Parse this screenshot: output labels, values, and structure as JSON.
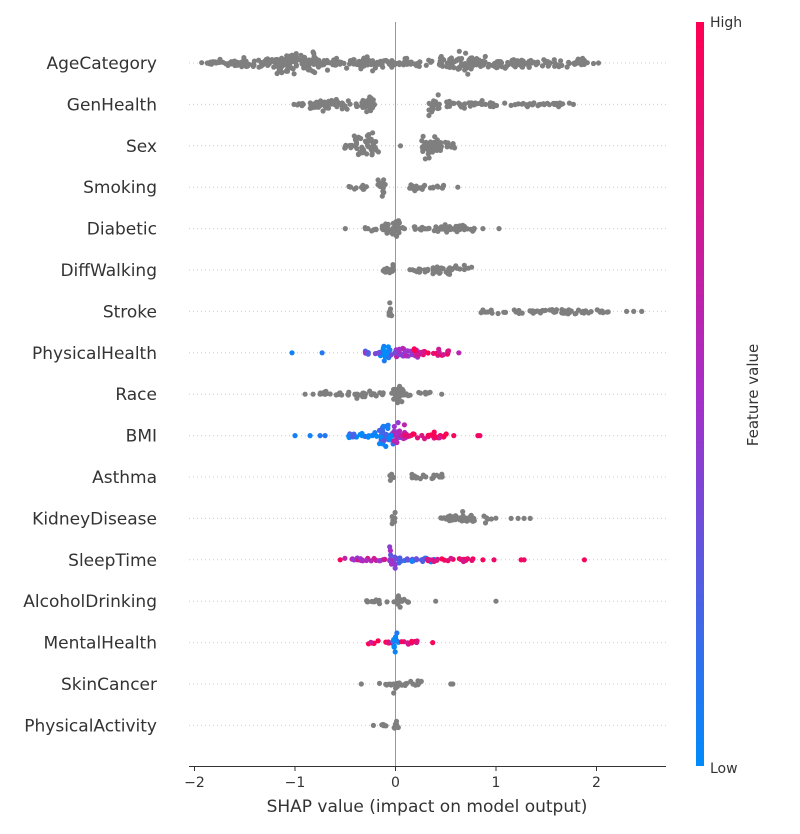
{
  "chart_data": {
    "type": "scatter",
    "subtype": "shap-beeswarm",
    "title": "",
    "xlabel": "SHAP value (impact on model output)",
    "xlim": [
      -2.05,
      2.7
    ],
    "xticks": [
      {
        "value": -2,
        "label": "−2"
      },
      {
        "value": -1,
        "label": "−1"
      },
      {
        "value": 0,
        "label": "0"
      },
      {
        "value": 1,
        "label": "1"
      },
      {
        "value": 2,
        "label": "2"
      }
    ],
    "grid": false,
    "zero_line": true,
    "colors": {
      "no_value": "#7f7f7f",
      "low": "#008bfb",
      "high": "#ff0051",
      "mid": "#a82ec9",
      "axis": "#333333",
      "row_guide": "#cccccc",
      "zero_line": "#999999"
    },
    "colorbar": {
      "title": "Feature value",
      "high_label": "High",
      "low_label": "Low"
    },
    "features": [
      {
        "name": "AgeCategory",
        "clusters": [
          {
            "c": -1.86,
            "w": 0.02,
            "n": 1,
            "a": 0.4
          },
          {
            "c": -1.75,
            "w": 0.18,
            "n": 1,
            "a": 2
          },
          {
            "c": -1.4,
            "w": 0.35,
            "n": 1,
            "a": 5
          },
          {
            "c": -0.98,
            "w": 0.2,
            "n": 1,
            "a": 11
          },
          {
            "c": -0.5,
            "w": 0.32,
            "n": 1,
            "a": 6
          },
          {
            "c": 0.1,
            "w": 0.3,
            "n": 1,
            "a": 4
          },
          {
            "c": 0.6,
            "w": 0.17,
            "n": 1,
            "a": 9
          },
          {
            "c": 1.0,
            "w": 0.3,
            "n": 1,
            "a": 6
          },
          {
            "c": 1.55,
            "w": 0.35,
            "n": 1,
            "a": 4
          },
          {
            "c": 1.87,
            "w": 0.1,
            "n": 1,
            "a": 2
          }
        ],
        "outliers": [
          2.02
        ]
      },
      {
        "name": "GenHealth",
        "clusters": [
          {
            "c": -0.95,
            "w": 0.05,
            "n": 1,
            "a": 1.5
          },
          {
            "c": -0.65,
            "w": 0.2,
            "n": 1,
            "a": 7
          },
          {
            "c": -0.3,
            "w": 0.12,
            "n": 1,
            "a": 3
          },
          {
            "c": -0.28,
            "w": 0.06,
            "n": 1,
            "a": 11
          },
          {
            "c": 0.38,
            "w": 0.06,
            "n": 1,
            "a": 8
          },
          {
            "c": 0.75,
            "w": 0.25,
            "n": 1,
            "a": 3.5
          },
          {
            "c": 1.3,
            "w": 0.45,
            "n": 1,
            "a": 2
          }
        ],
        "outliers": [
          -1.01,
          1.77
        ]
      },
      {
        "name": "Sex",
        "clusters": [
          {
            "c": -0.45,
            "w": 0.06,
            "n": 1,
            "a": 3
          },
          {
            "c": -0.29,
            "w": 0.12,
            "n": 1,
            "a": 12
          },
          {
            "c": 0.36,
            "w": 0.1,
            "n": 1,
            "a": 12
          },
          {
            "c": 0.52,
            "w": 0.07,
            "n": 1,
            "a": 4
          }
        ],
        "outliers": [
          0.05
        ]
      },
      {
        "name": "Smoking",
        "clusters": [
          {
            "c": -0.38,
            "w": 0.1,
            "n": 1,
            "a": 2
          },
          {
            "c": -0.14,
            "w": 0.04,
            "n": 1,
            "a": 9
          },
          {
            "c": 0.22,
            "w": 0.08,
            "n": 1,
            "a": 5
          },
          {
            "c": 0.3,
            "w": 0.18,
            "n": 1,
            "a": 2
          }
        ],
        "outliers": [
          -0.45,
          0.62
        ]
      },
      {
        "name": "Diabetic",
        "clusters": [
          {
            "c": -0.25,
            "w": 0.06,
            "n": 1,
            "a": 2
          },
          {
            "c": -0.05,
            "w": 0.1,
            "n": 1,
            "a": 10
          },
          {
            "c": 0.35,
            "w": 0.35,
            "n": 1,
            "a": 3
          },
          {
            "c": 0.6,
            "w": 0.2,
            "n": 1,
            "a": 4
          }
        ],
        "outliers": [
          -0.5,
          -0.3,
          0.87,
          1.03
        ]
      },
      {
        "name": "DiffWalking",
        "clusters": [
          {
            "c": -0.08,
            "w": 0.06,
            "n": 1,
            "a": 6
          },
          {
            "c": 0.45,
            "w": 0.32,
            "n": 1,
            "a": 4
          }
        ],
        "outliers": []
      },
      {
        "name": "Stroke",
        "clusters": [
          {
            "c": -0.05,
            "w": 0.02,
            "n": 1,
            "a": 10
          },
          {
            "c": 1.4,
            "w": 0.55,
            "n": 1,
            "a": 3
          },
          {
            "c": 2.1,
            "w": 0.1,
            "n": 1,
            "a": 2
          }
        ],
        "outliers": [
          2.3,
          2.37,
          2.45
        ]
      },
      {
        "name": "PhysicalHealth",
        "clusters": [
          {
            "c": -0.1,
            "w": 0.05,
            "n": 0.05,
            "a": 8
          },
          {
            "c": -0.25,
            "w": 0.1,
            "n": 0.3,
            "a": 2
          },
          {
            "c": 0.1,
            "w": 0.15,
            "n": 0.45,
            "a": 5
          },
          {
            "c": 0.35,
            "w": 0.18,
            "n": 0.85,
            "a": 4
          }
        ],
        "outliers": [
          -1.03,
          -0.73,
          0.63
        ],
        "outlier_n": [
          0.05,
          0.1,
          0.6
        ]
      },
      {
        "name": "Race",
        "clusters": [
          {
            "c": -0.6,
            "w": 0.2,
            "n": 1,
            "a": 2
          },
          {
            "c": -0.25,
            "w": 0.15,
            "n": 1,
            "a": 4
          },
          {
            "c": 0.02,
            "w": 0.06,
            "n": 1,
            "a": 12
          },
          {
            "c": 0.2,
            "w": 0.15,
            "n": 1,
            "a": 3
          }
        ],
        "outliers": [
          -0.9,
          -0.82,
          -0.75,
          0.46
        ]
      },
      {
        "name": "BMI",
        "clusters": [
          {
            "c": -0.28,
            "w": 0.2,
            "n": 0.08,
            "a": 3
          },
          {
            "c": -0.08,
            "w": 0.08,
            "n": 0.15,
            "a": 11
          },
          {
            "c": 0.05,
            "w": 0.07,
            "n": 0.55,
            "a": 10
          },
          {
            "c": 0.3,
            "w": 0.22,
            "n": 0.9,
            "a": 3
          }
        ],
        "outliers": [
          -1.0,
          -0.85,
          -0.75,
          -0.7,
          0.58,
          0.82,
          0.84
        ],
        "outlier_n": [
          0.05,
          0.05,
          0.1,
          0.1,
          0.95,
          0.95,
          0.9
        ]
      },
      {
        "name": "Asthma",
        "clusters": [
          {
            "c": -0.04,
            "w": 0.02,
            "n": 1,
            "a": 7
          },
          {
            "c": 0.3,
            "w": 0.18,
            "n": 1,
            "a": 3
          }
        ],
        "outliers": []
      },
      {
        "name": "KidneyDisease",
        "clusters": [
          {
            "c": -0.02,
            "w": 0.02,
            "n": 1,
            "a": 8
          },
          {
            "c": 0.55,
            "w": 0.1,
            "n": 1,
            "a": 2
          },
          {
            "c": 0.75,
            "w": 0.25,
            "n": 1,
            "a": 4
          }
        ],
        "outliers": [
          1.15,
          1.22,
          1.28,
          1.34
        ]
      },
      {
        "name": "SleepTime",
        "clusters": [
          {
            "c": -0.03,
            "w": 0.03,
            "n": 0.45,
            "a": 11
          },
          {
            "c": -0.3,
            "w": 0.22,
            "n": 0.6,
            "a": 2
          },
          {
            "c": 0.2,
            "w": 0.2,
            "n": 0.2,
            "a": 3
          },
          {
            "c": 0.55,
            "w": 0.25,
            "n": 0.9,
            "a": 2
          }
        ],
        "outliers": [
          -0.55,
          0.87,
          0.98,
          1.25,
          1.28,
          1.88
        ],
        "outlier_n": [
          0.95,
          0.95,
          0.9,
          0.95,
          0.9,
          0.95
        ]
      },
      {
        "name": "AlcoholDrinking",
        "clusters": [
          {
            "c": -0.15,
            "w": 0.15,
            "n": 1,
            "a": 2
          },
          {
            "c": 0.02,
            "w": 0.03,
            "n": 1,
            "a": 9
          },
          {
            "c": 0.1,
            "w": 0.05,
            "n": 1,
            "a": 2
          }
        ],
        "outliers": [
          0.4,
          1.0
        ]
      },
      {
        "name": "MentalHealth",
        "clusters": [
          {
            "c": -0.15,
            "w": 0.12,
            "n": 0.9,
            "a": 2
          },
          {
            "c": 0.0,
            "w": 0.03,
            "n": 0.05,
            "a": 10
          },
          {
            "c": 0.15,
            "w": 0.1,
            "n": 0.85,
            "a": 3
          }
        ],
        "outliers": [
          0.37
        ],
        "outlier_n": [
          0.95
        ]
      },
      {
        "name": "SkinCancer",
        "clusters": [
          {
            "c": -0.1,
            "w": 0.06,
            "n": 1,
            "a": 2
          },
          {
            "c": 0.0,
            "w": 0.02,
            "n": 1,
            "a": 8
          },
          {
            "c": 0.15,
            "w": 0.15,
            "n": 1,
            "a": 3
          }
        ],
        "outliers": [
          -0.34,
          0.55,
          0.57
        ]
      },
      {
        "name": "PhysicalActivity",
        "clusters": [
          {
            "c": -0.1,
            "w": 0.04,
            "n": 1,
            "a": 2
          },
          {
            "c": 0.01,
            "w": 0.03,
            "n": 1,
            "a": 8
          }
        ],
        "outliers": [
          -0.22
        ]
      }
    ]
  }
}
